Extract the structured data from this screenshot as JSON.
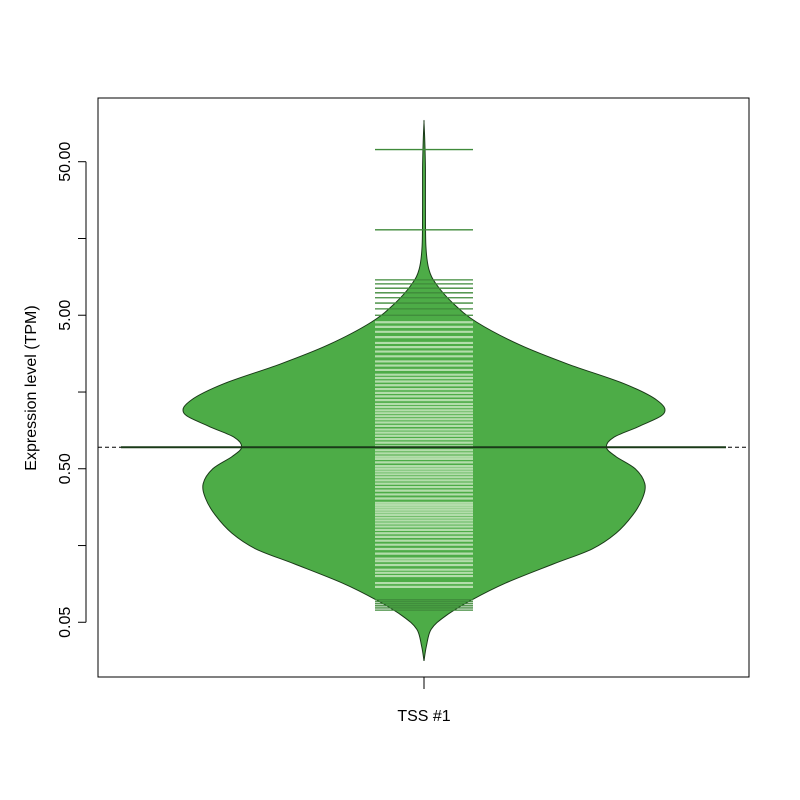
{
  "colors": {
    "violin_fill": "#4DAC47",
    "violin_outline": "#1a3a18",
    "rug_light": "#B3DDAB",
    "rug_dark": "#3F8A3A",
    "median_line": "#1a3a18",
    "axes": "#000000"
  },
  "chart_data": {
    "type": "violin",
    "ylabel": "Expression level (TPM)",
    "y_scale": "log10",
    "ylim": [
      0.022,
      130
    ],
    "y_ticks": [
      0.05,
      0.158,
      0.5,
      1.58,
      5.0,
      15.8,
      50.0,
      158
    ],
    "y_tick_labels": [
      {
        "value": 0.05,
        "label": "0.05"
      },
      {
        "value": 0.5,
        "label": "0.50"
      },
      {
        "value": 5.0,
        "label": "5.00"
      },
      {
        "value": 50.0,
        "label": "50.00"
      }
    ],
    "categories": [
      "TSS #1"
    ],
    "median": 0.69,
    "density": [
      {
        "y": 0.028,
        "w": 0.0
      },
      {
        "y": 0.035,
        "w": 0.01
      },
      {
        "y": 0.045,
        "w": 0.03
      },
      {
        "y": 0.055,
        "w": 0.09
      },
      {
        "y": 0.07,
        "w": 0.2
      },
      {
        "y": 0.09,
        "w": 0.34
      },
      {
        "y": 0.12,
        "w": 0.54
      },
      {
        "y": 0.15,
        "w": 0.7
      },
      {
        "y": 0.19,
        "w": 0.8
      },
      {
        "y": 0.25,
        "w": 0.87
      },
      {
        "y": 0.32,
        "w": 0.91
      },
      {
        "y": 0.4,
        "w": 0.92
      },
      {
        "y": 0.5,
        "w": 0.88
      },
      {
        "y": 0.6,
        "w": 0.8
      },
      {
        "y": 0.69,
        "w": 0.76
      },
      {
        "y": 0.8,
        "w": 0.79
      },
      {
        "y": 0.95,
        "w": 0.9
      },
      {
        "y": 1.15,
        "w": 1.0
      },
      {
        "y": 1.4,
        "w": 0.97
      },
      {
        "y": 1.8,
        "w": 0.83
      },
      {
        "y": 2.4,
        "w": 0.6
      },
      {
        "y": 3.2,
        "w": 0.4
      },
      {
        "y": 4.5,
        "w": 0.22
      },
      {
        "y": 6.0,
        "w": 0.12
      },
      {
        "y": 8.0,
        "w": 0.05
      },
      {
        "y": 10.0,
        "w": 0.02
      },
      {
        "y": 14.0,
        "w": 0.008
      },
      {
        "y": 25.0,
        "w": 0.006
      },
      {
        "y": 45.0,
        "w": 0.006
      },
      {
        "y": 70.0,
        "w": 0.003
      },
      {
        "y": 90.0,
        "w": 0.0
      }
    ],
    "observations": [
      0.06,
      0.062,
      0.064,
      0.066,
      0.068,
      0.07,
      0.085,
      0.09,
      0.1,
      0.105,
      0.11,
      0.118,
      0.125,
      0.13,
      0.14,
      0.15,
      0.16,
      0.17,
      0.18,
      0.19,
      0.2,
      0.21,
      0.22,
      0.23,
      0.24,
      0.25,
      0.26,
      0.27,
      0.28,
      0.29,
      0.3,
      0.32,
      0.34,
      0.36,
      0.38,
      0.4,
      0.42,
      0.44,
      0.46,
      0.48,
      0.5,
      0.52,
      0.55,
      0.58,
      0.6,
      0.63,
      0.66,
      0.7,
      0.74,
      0.78,
      0.82,
      0.86,
      0.9,
      0.95,
      1.0,
      1.05,
      1.1,
      1.15,
      1.2,
      1.26,
      1.32,
      1.4,
      1.48,
      1.56,
      1.65,
      1.75,
      1.85,
      1.95,
      2.05,
      2.2,
      2.35,
      2.5,
      2.7,
      2.9,
      3.1,
      3.3,
      3.6,
      3.9,
      4.2,
      4.5,
      5.0,
      5.5,
      6.0,
      6.5,
      7.0,
      7.5,
      8.0,
      8.5,
      18.0,
      60.0
    ]
  }
}
